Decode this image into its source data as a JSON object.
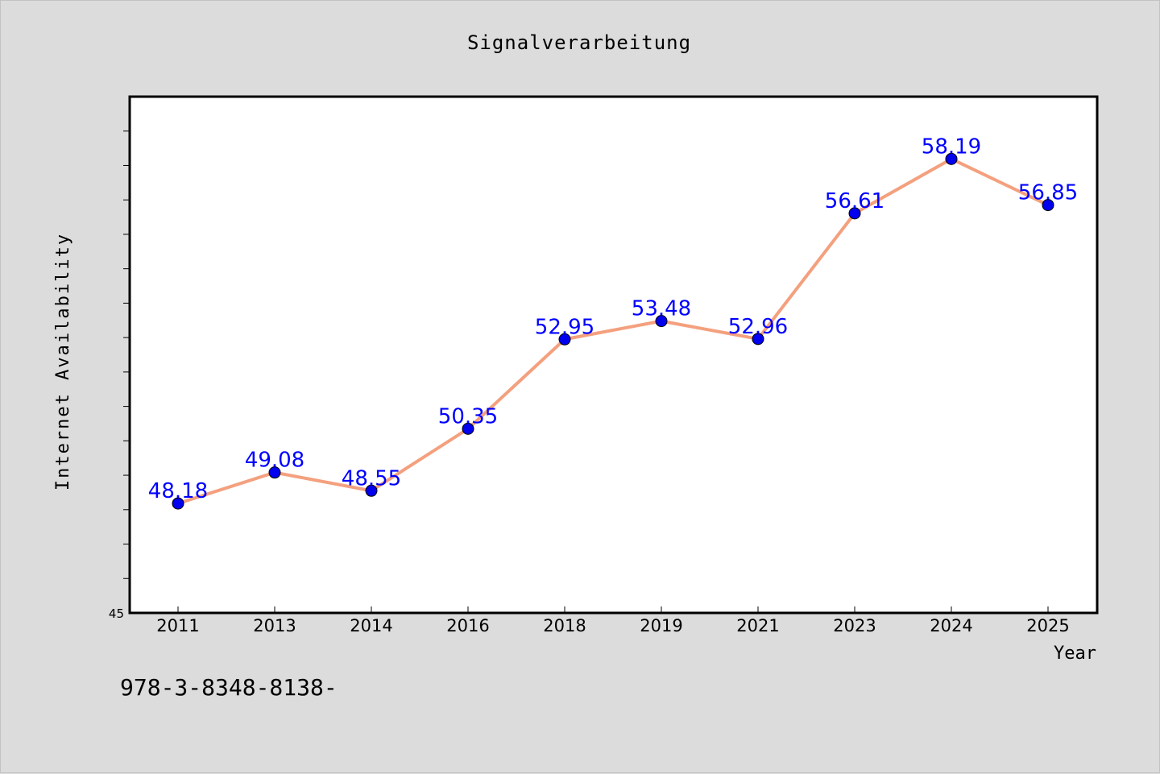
{
  "chart_data": {
    "type": "line",
    "title": "Signalverarbeitung",
    "xlabel": "Year",
    "ylabel": "Internet Availability",
    "categories": [
      "2011",
      "2013",
      "2014",
      "2016",
      "2018",
      "2019",
      "2021",
      "2023",
      "2024",
      "2025"
    ],
    "values": [
      48.18,
      49.08,
      48.55,
      50.35,
      52.95,
      53.48,
      52.96,
      56.61,
      58.19,
      56.85
    ],
    "value_labels": [
      "48.18",
      "49.08",
      "48.55",
      "50.35",
      "52.95",
      "53.48",
      "52.96",
      "56.61",
      "58.19",
      "56.85"
    ],
    "ylim": [
      45,
      60
    ],
    "y_tick_label": "45",
    "grid": false,
    "legend": "none",
    "colors": {
      "line": "#f4a07e",
      "marker": "#0000ee",
      "value_label": "#0000ff",
      "background": "#dcdcdc",
      "plot_background": "#ffffff"
    }
  },
  "footer_text": "978-3-8348-8138-"
}
